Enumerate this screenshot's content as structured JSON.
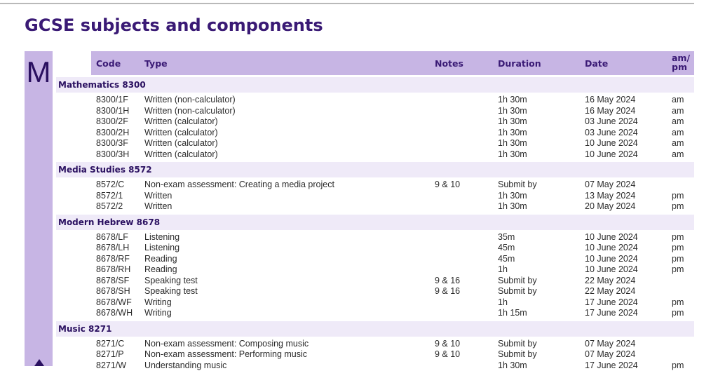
{
  "title": "GCSE subjects and components",
  "tab_letter": "M",
  "columns": {
    "code": "Code",
    "type": "Type",
    "notes": "Notes",
    "duration": "Duration",
    "date": "Date",
    "ampm": "am/\npm"
  },
  "sections": [
    {
      "heading": "Mathematics  8300",
      "rows": [
        {
          "code": "8300/1F",
          "type": "Written (non-calculator)",
          "notes": "",
          "duration": "1h 30m",
          "date": "16 May 2024",
          "ampm": "am"
        },
        {
          "code": "8300/1H",
          "type": "Written (non-calculator)",
          "notes": "",
          "duration": "1h 30m",
          "date": "16 May 2024",
          "ampm": "am"
        },
        {
          "code": "8300/2F",
          "type": "Written (calculator)",
          "notes": "",
          "duration": "1h 30m",
          "date": "03 June 2024",
          "ampm": "am"
        },
        {
          "code": "8300/2H",
          "type": "Written (calculator)",
          "notes": "",
          "duration": "1h 30m",
          "date": "03 June 2024",
          "ampm": "am"
        },
        {
          "code": "8300/3F",
          "type": "Written (calculator)",
          "notes": "",
          "duration": "1h 30m",
          "date": "10 June 2024",
          "ampm": "am"
        },
        {
          "code": "8300/3H",
          "type": "Written (calculator)",
          "notes": "",
          "duration": "1h 30m",
          "date": "10 June 2024",
          "ampm": "am"
        }
      ]
    },
    {
      "heading": "Media Studies  8572",
      "rows": [
        {
          "code": "8572/C",
          "type": "Non-exam assessment: Creating a media project",
          "notes": "9 & 10",
          "duration": "Submit by",
          "date": "07 May 2024",
          "ampm": ""
        },
        {
          "code": "8572/1",
          "type": "Written",
          "notes": "",
          "duration": "1h 30m",
          "date": "13 May 2024",
          "ampm": "pm"
        },
        {
          "code": "8572/2",
          "type": "Written",
          "notes": "",
          "duration": "1h 30m",
          "date": "20 May 2024",
          "ampm": "pm"
        }
      ]
    },
    {
      "heading": "Modern Hebrew  8678",
      "rows": [
        {
          "code": "8678/LF",
          "type": "Listening",
          "notes": "",
          "duration": "35m",
          "date": "10 June 2024",
          "ampm": "pm"
        },
        {
          "code": "8678/LH",
          "type": "Listening",
          "notes": "",
          "duration": "45m",
          "date": "10 June 2024",
          "ampm": "pm"
        },
        {
          "code": "8678/RF",
          "type": "Reading",
          "notes": "",
          "duration": "45m",
          "date": "10 June 2024",
          "ampm": "pm"
        },
        {
          "code": "8678/RH",
          "type": "Reading",
          "notes": "",
          "duration": "1h",
          "date": "10 June 2024",
          "ampm": "pm"
        },
        {
          "code": "8678/SF",
          "type": "Speaking test",
          "notes": "9 & 16",
          "duration": "Submit by",
          "date": "22 May 2024",
          "ampm": ""
        },
        {
          "code": "8678/SH",
          "type": "Speaking test",
          "notes": "9 & 16",
          "duration": "Submit by",
          "date": "22 May 2024",
          "ampm": ""
        },
        {
          "code": "8678/WF",
          "type": "Writing",
          "notes": "",
          "duration": "1h",
          "date": "17 June 2024",
          "ampm": "pm"
        },
        {
          "code": "8678/WH",
          "type": "Writing",
          "notes": "",
          "duration": "1h 15m",
          "date": "17 June 2024",
          "ampm": "pm"
        }
      ]
    },
    {
      "heading": "Music  8271",
      "rows": [
        {
          "code": "8271/C",
          "type": "Non-exam assessment: Composing music",
          "notes": "9 & 10",
          "duration": "Submit by",
          "date": "07 May 2024",
          "ampm": ""
        },
        {
          "code": "8271/P",
          "type": "Non-exam assessment: Performing music",
          "notes": "9 & 10",
          "duration": "Submit by",
          "date": "07 May 2024",
          "ampm": ""
        },
        {
          "code": "8271/W",
          "type": "Understanding music",
          "notes": "",
          "duration": "1h 30m",
          "date": "17 June 2024",
          "ampm": "pm"
        }
      ]
    }
  ],
  "colors": {
    "accent_dark": "#3a1a75",
    "tab_bg": "#c7b5e4",
    "section_bg": "#efeaf8"
  },
  "icons": {
    "back_to_top": "up-arrow-icon"
  }
}
